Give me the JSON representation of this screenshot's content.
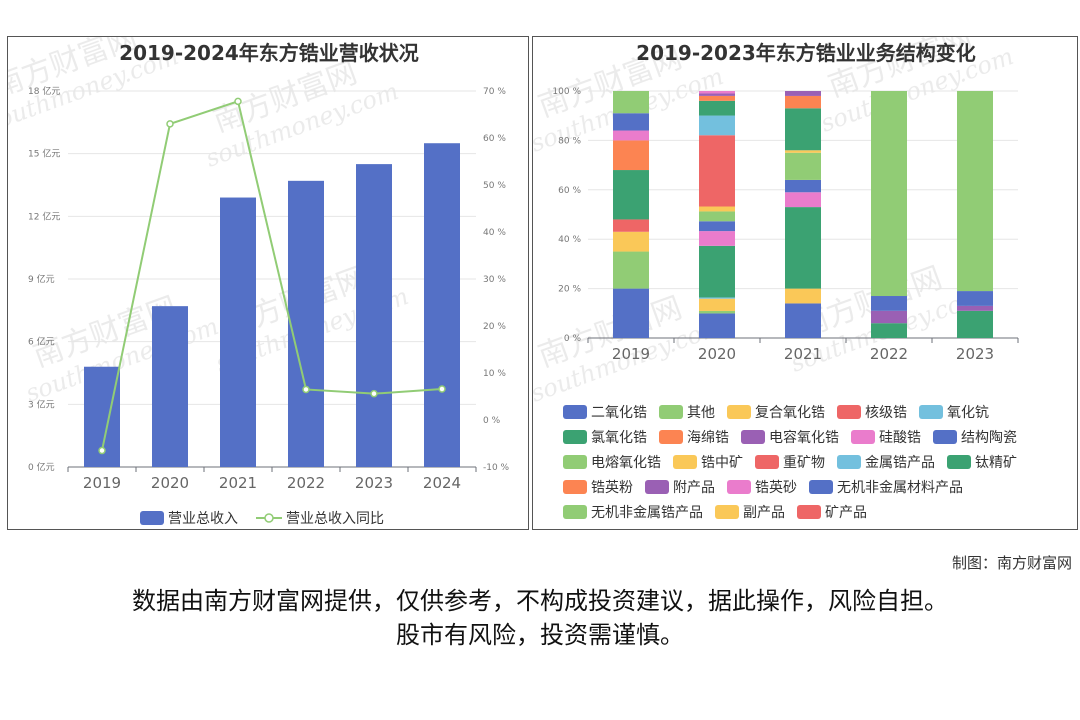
{
  "chart_data": [
    {
      "type": "bar+line",
      "title": "2019-2024年东方锆业营收状况",
      "categories": [
        "2019",
        "2020",
        "2021",
        "2022",
        "2023",
        "2024"
      ],
      "series": [
        {
          "name": "营业总收入",
          "type": "bar",
          "axis": "left",
          "values": [
            4.8,
            7.7,
            12.9,
            13.7,
            14.5,
            15.5
          ]
        },
        {
          "name": "营业总收入同比",
          "type": "line",
          "axis": "right",
          "values": [
            -6.5,
            63.0,
            67.8,
            6.5,
            5.6,
            6.6
          ]
        }
      ],
      "y_left": {
        "min": 0,
        "max": 18,
        "ticks": [
          "0 亿元",
          "3 亿元",
          "6 亿元",
          "9 亿元",
          "12 亿元",
          "15 亿元",
          "18 亿元"
        ]
      },
      "y_right": {
        "min": -10,
        "max": 70,
        "ticks": [
          "-10 %",
          "0 %",
          "10 %",
          "20 %",
          "30 %",
          "40 %",
          "50 %",
          "60 %",
          "70 %"
        ]
      },
      "legend": "bottom",
      "colors": {
        "bar": "#5470c6",
        "line": "#91cc75"
      }
    },
    {
      "type": "stacked-bar",
      "title": "2019-2023年东方锆业业务结构变化",
      "categories": [
        "2019",
        "2020",
        "2021",
        "2022",
        "2023"
      ],
      "y_ticks": [
        "0 %",
        "20 %",
        "40 %",
        "60 %",
        "80 %",
        "100 %"
      ],
      "legend": "bottom",
      "series": [
        {
          "name": "二氧化锆",
          "color": "#5470c6",
          "values": [
            20,
            10,
            14,
            0,
            0
          ]
        },
        {
          "name": "其他",
          "color": "#91cc75",
          "values": [
            15,
            1,
            0,
            0,
            0
          ]
        },
        {
          "name": "复合氧化锆",
          "color": "#fac858",
          "values": [
            8,
            5,
            6,
            0,
            0
          ]
        },
        {
          "name": "核级锆",
          "color": "#ee6666",
          "values": [
            5,
            0,
            0,
            0,
            0
          ]
        },
        {
          "name": "氧化钪",
          "color": "#73c0de",
          "values": [
            0,
            0.5,
            0,
            0,
            0
          ]
        },
        {
          "name": "氯氧化锆",
          "color": "#3ba272",
          "values": [
            20,
            21,
            33,
            0,
            0
          ]
        },
        {
          "name": "海绵锆",
          "color": "#fc8452",
          "values": [
            12,
            0,
            0,
            0,
            0
          ]
        },
        {
          "name": "电容氧化锆",
          "color": "#9a60b4",
          "values": [
            0,
            0,
            0,
            0,
            0
          ]
        },
        {
          "name": "硅酸锆",
          "color": "#ea7ccc",
          "values": [
            4,
            6,
            6,
            0,
            0
          ]
        },
        {
          "name": "结构陶瓷",
          "color": "#5470c6",
          "values": [
            7,
            4,
            5,
            0,
            0
          ]
        },
        {
          "name": "电熔氧化锆",
          "color": "#91cc75",
          "values": [
            9,
            4,
            11,
            0,
            0
          ]
        },
        {
          "name": "锆中矿",
          "color": "#fac858",
          "values": [
            0,
            2,
            1,
            0,
            0
          ]
        },
        {
          "name": "重矿物",
          "color": "#ee6666",
          "values": [
            0,
            29,
            0,
            0,
            0
          ]
        },
        {
          "name": "金属锆产品",
          "color": "#73c0de",
          "values": [
            0,
            8,
            0,
            0,
            0
          ]
        },
        {
          "name": "钛精矿",
          "color": "#3ba272",
          "values": [
            0,
            6,
            17,
            6,
            11
          ]
        },
        {
          "name": "锆英粉",
          "color": "#fc8452",
          "values": [
            0,
            2,
            5,
            0,
            0
          ]
        },
        {
          "name": "附产品",
          "color": "#9a60b4",
          "values": [
            0,
            1,
            2,
            5,
            2
          ]
        },
        {
          "name": "锆英砂",
          "color": "#ea7ccc",
          "values": [
            0,
            1,
            0,
            0,
            0
          ]
        },
        {
          "name": "无机非金属材料产品",
          "color": "#5470c6",
          "values": [
            0,
            0,
            0,
            6,
            6
          ]
        },
        {
          "name": "无机非金属锆产品",
          "color": "#91cc75",
          "values": [
            0,
            0,
            0,
            83,
            81
          ]
        },
        {
          "name": "副产品",
          "color": "#fac858",
          "values": [
            0,
            0,
            0,
            0,
            0
          ]
        },
        {
          "name": "矿产品",
          "color": "#ee6666",
          "values": [
            0,
            0,
            0,
            0,
            0
          ]
        }
      ]
    }
  ],
  "watermark": {
    "cn": "南方财富网",
    "en": "southmoney.com"
  },
  "credit": "制图：南方财富网",
  "disclaimer": [
    "数据由南方财富网提供，仅供参考，不构成投资建议，据此操作，风险自担。",
    "股市有风险，投资需谨慎。"
  ]
}
